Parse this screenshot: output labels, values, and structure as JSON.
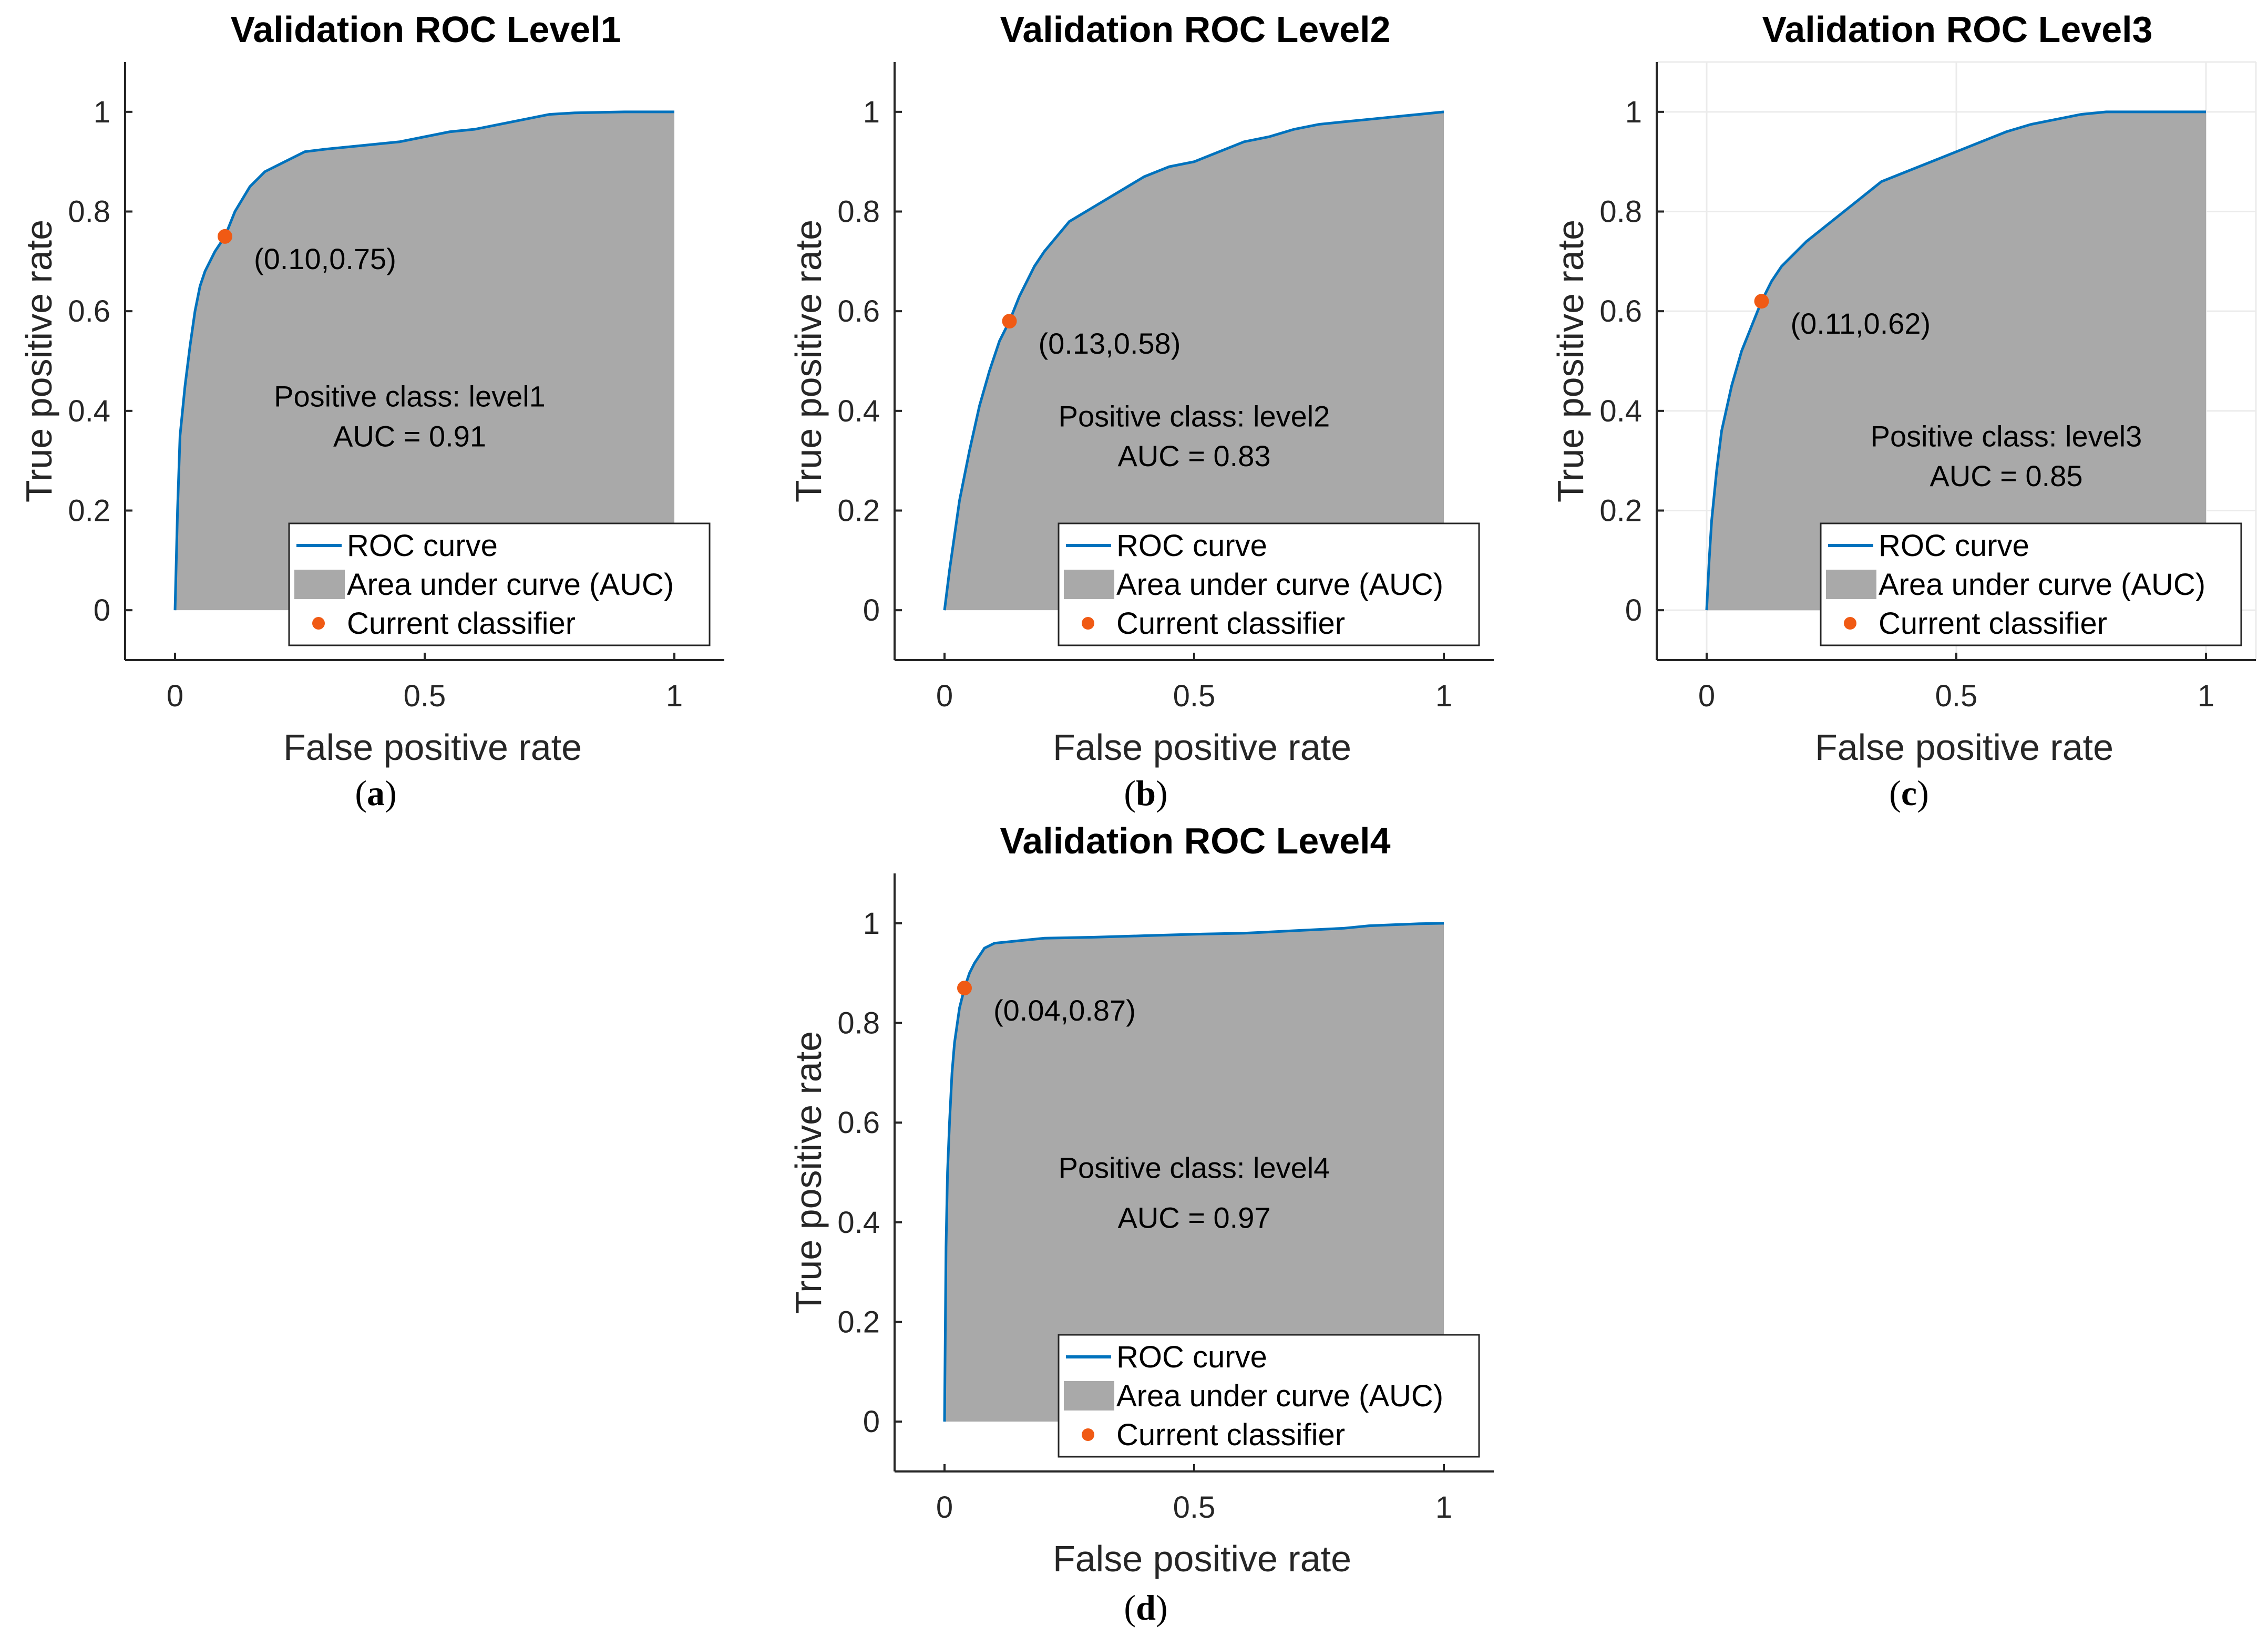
{
  "colors": {
    "roc": "#0072BD",
    "area": "#A9A9A9",
    "point": "#F05A14",
    "axis": "#262626",
    "grid": "#EBEBEB"
  },
  "legend": {
    "roc": "ROC curve",
    "area": "Area under curve (AUC)",
    "point": "Current classifier"
  },
  "chart_data": [
    {
      "type": "area",
      "title": "Validation ROC Level1",
      "caption": "a",
      "xlabel": "False positive rate",
      "ylabel": "True positive rate",
      "xlim": [
        -0.1,
        1.1
      ],
      "ylim": [
        -0.1,
        1.1
      ],
      "xticks": [
        "0",
        "0.5",
        "1"
      ],
      "yticks": [
        "0",
        "0.2",
        "0.4",
        "0.6",
        "0.8",
        "1"
      ],
      "grid": false,
      "legend_position": "bottom-right",
      "positive_class": "Positive class: level1",
      "auc_text": "AUC = 0.91",
      "current_point": {
        "x": 0.1,
        "y": 0.75,
        "label": "(0.10,0.75)"
      },
      "curve": {
        "x": [
          0,
          0.005,
          0.01,
          0.02,
          0.03,
          0.04,
          0.05,
          0.06,
          0.08,
          0.1,
          0.12,
          0.15,
          0.18,
          0.22,
          0.26,
          0.3,
          0.35,
          0.4,
          0.45,
          0.5,
          0.55,
          0.6,
          0.65,
          0.7,
          0.75,
          0.8,
          0.9,
          1.0
        ],
        "y": [
          0,
          0.2,
          0.35,
          0.45,
          0.53,
          0.6,
          0.65,
          0.68,
          0.72,
          0.75,
          0.8,
          0.85,
          0.88,
          0.9,
          0.92,
          0.925,
          0.93,
          0.935,
          0.94,
          0.95,
          0.96,
          0.965,
          0.975,
          0.985,
          0.995,
          0.998,
          1.0,
          1.0
        ]
      }
    },
    {
      "type": "area",
      "title": "Validation ROC Level2",
      "caption": "b",
      "xlabel": "False positive rate",
      "ylabel": "True positive rate",
      "xlim": [
        -0.1,
        1.1
      ],
      "ylim": [
        -0.1,
        1.1
      ],
      "xticks": [
        "0",
        "0.5",
        "1"
      ],
      "yticks": [
        "0",
        "0.2",
        "0.4",
        "0.6",
        "0.8",
        "1"
      ],
      "grid": false,
      "legend_position": "bottom-right",
      "positive_class": "Positive class: level2",
      "auc_text": "AUC = 0.83",
      "current_point": {
        "x": 0.13,
        "y": 0.58,
        "label": "(0.13,0.58)"
      },
      "curve": {
        "x": [
          0,
          0.01,
          0.02,
          0.03,
          0.05,
          0.07,
          0.09,
          0.11,
          0.13,
          0.15,
          0.18,
          0.2,
          0.25,
          0.3,
          0.35,
          0.4,
          0.45,
          0.5,
          0.55,
          0.6,
          0.65,
          0.7,
          0.75,
          0.8,
          0.85,
          0.9,
          0.95,
          1.0
        ],
        "y": [
          0,
          0.08,
          0.15,
          0.22,
          0.32,
          0.41,
          0.48,
          0.54,
          0.58,
          0.63,
          0.69,
          0.72,
          0.78,
          0.81,
          0.84,
          0.87,
          0.89,
          0.9,
          0.92,
          0.94,
          0.95,
          0.965,
          0.975,
          0.98,
          0.985,
          0.99,
          0.995,
          1.0
        ]
      }
    },
    {
      "type": "area",
      "title": "Validation ROC Level3",
      "caption": "c",
      "xlabel": "False positive rate",
      "ylabel": "True positive rate",
      "xlim": [
        -0.1,
        1.1
      ],
      "ylim": [
        -0.1,
        1.1
      ],
      "xticks": [
        "0",
        "0.5",
        "1"
      ],
      "yticks": [
        "0",
        "0.2",
        "0.4",
        "0.6",
        "0.8",
        "1"
      ],
      "grid": true,
      "legend_position": "bottom-right",
      "positive_class": "Positive class: level3",
      "auc_text": "AUC = 0.85",
      "current_point": {
        "x": 0.11,
        "y": 0.62,
        "label": "(0.11,0.62)"
      },
      "curve": {
        "x": [
          0,
          0.005,
          0.01,
          0.02,
          0.03,
          0.05,
          0.07,
          0.09,
          0.11,
          0.13,
          0.15,
          0.18,
          0.2,
          0.25,
          0.3,
          0.35,
          0.4,
          0.45,
          0.5,
          0.55,
          0.6,
          0.65,
          0.7,
          0.75,
          0.8,
          0.9,
          1.0
        ],
        "y": [
          0,
          0.1,
          0.18,
          0.28,
          0.36,
          0.45,
          0.52,
          0.57,
          0.62,
          0.66,
          0.69,
          0.72,
          0.74,
          0.78,
          0.82,
          0.86,
          0.88,
          0.9,
          0.92,
          0.94,
          0.96,
          0.975,
          0.985,
          0.995,
          1.0,
          1.0,
          1.0
        ]
      }
    },
    {
      "type": "area",
      "title": "Validation ROC Level4",
      "caption": "d",
      "xlabel": "False positive rate",
      "ylabel": "True positive rate",
      "xlim": [
        -0.1,
        1.1
      ],
      "ylim": [
        -0.1,
        1.1
      ],
      "xticks": [
        "0",
        "0.5",
        "1"
      ],
      "yticks": [
        "0",
        "0.2",
        "0.4",
        "0.6",
        "0.8",
        "1"
      ],
      "grid": false,
      "legend_position": "bottom-right",
      "positive_class": "Positive class: level4",
      "auc_text": "AUC = 0.97",
      "current_point": {
        "x": 0.04,
        "y": 0.87,
        "label": "(0.04,0.87)"
      },
      "curve": {
        "x": [
          0,
          0.003,
          0.006,
          0.01,
          0.015,
          0.02,
          0.03,
          0.04,
          0.05,
          0.06,
          0.08,
          0.1,
          0.15,
          0.2,
          0.3,
          0.4,
          0.5,
          0.6,
          0.7,
          0.8,
          0.85,
          0.9,
          0.95,
          1.0
        ],
        "y": [
          0,
          0.35,
          0.5,
          0.6,
          0.7,
          0.76,
          0.83,
          0.87,
          0.9,
          0.92,
          0.95,
          0.96,
          0.965,
          0.97,
          0.972,
          0.975,
          0.978,
          0.98,
          0.985,
          0.99,
          0.995,
          0.997,
          0.999,
          1.0
        ]
      }
    }
  ]
}
